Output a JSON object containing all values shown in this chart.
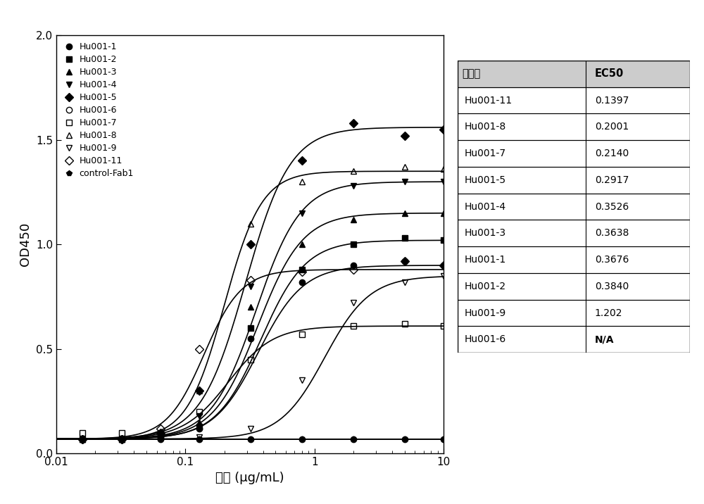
{
  "series": [
    {
      "name": "Hu001-1",
      "marker": "o",
      "fillstyle": "full",
      "color": "black",
      "ec50": 0.3676,
      "bottom": 0.07,
      "top": 0.9,
      "hill": 2.5,
      "x_data": [
        0.016,
        0.032,
        0.064,
        0.128,
        0.32,
        0.8,
        2.0,
        5.0,
        10.0
      ],
      "y_data": [
        0.07,
        0.07,
        0.08,
        0.12,
        0.55,
        0.82,
        0.9,
        0.92,
        0.9
      ]
    },
    {
      "name": "Hu001-2",
      "marker": "s",
      "fillstyle": "full",
      "color": "black",
      "ec50": 0.384,
      "bottom": 0.07,
      "top": 1.02,
      "hill": 2.5,
      "x_data": [
        0.016,
        0.032,
        0.064,
        0.128,
        0.32,
        0.8,
        2.0,
        5.0,
        10.0
      ],
      "y_data": [
        0.07,
        0.07,
        0.08,
        0.13,
        0.6,
        0.88,
        1.0,
        1.03,
        1.02
      ]
    },
    {
      "name": "Hu001-3",
      "marker": "^",
      "fillstyle": "full",
      "color": "black",
      "ec50": 0.3638,
      "bottom": 0.07,
      "top": 1.15,
      "hill": 2.5,
      "x_data": [
        0.016,
        0.032,
        0.064,
        0.128,
        0.32,
        0.8,
        2.0,
        5.0,
        10.0
      ],
      "y_data": [
        0.07,
        0.07,
        0.09,
        0.15,
        0.7,
        1.0,
        1.12,
        1.15,
        1.15
      ]
    },
    {
      "name": "Hu001-4",
      "marker": "v",
      "fillstyle": "full",
      "color": "black",
      "ec50": 0.3526,
      "bottom": 0.07,
      "top": 1.3,
      "hill": 2.5,
      "x_data": [
        0.016,
        0.032,
        0.064,
        0.128,
        0.32,
        0.8,
        2.0,
        5.0,
        10.0
      ],
      "y_data": [
        0.07,
        0.07,
        0.09,
        0.18,
        0.8,
        1.15,
        1.28,
        1.3,
        1.3
      ]
    },
    {
      "name": "Hu001-5",
      "marker": "D",
      "fillstyle": "full",
      "color": "black",
      "ec50": 0.2917,
      "bottom": 0.07,
      "top": 1.56,
      "hill": 2.5,
      "x_data": [
        0.016,
        0.032,
        0.064,
        0.128,
        0.32,
        0.8,
        2.0,
        5.0,
        10.0
      ],
      "y_data": [
        0.07,
        0.07,
        0.1,
        0.3,
        1.0,
        1.4,
        1.58,
        1.52,
        1.55
      ]
    },
    {
      "name": "Hu001-6",
      "marker": "o",
      "fillstyle": "none",
      "color": "black",
      "ec50": 9999,
      "bottom": 0.07,
      "top": 0.07,
      "hill": 1.0,
      "x_data": [
        0.016,
        0.032,
        0.064,
        0.128,
        0.32,
        0.8,
        2.0,
        5.0,
        10.0
      ],
      "y_data": [
        0.07,
        0.07,
        0.07,
        0.07,
        0.07,
        0.07,
        0.07,
        0.07,
        0.07
      ]
    },
    {
      "name": "Hu001-7",
      "marker": "s",
      "fillstyle": "none",
      "color": "black",
      "ec50": 0.214,
      "bottom": 0.07,
      "top": 0.61,
      "hill": 2.5,
      "x_data": [
        0.016,
        0.032,
        0.064,
        0.128,
        0.32,
        0.8,
        2.0,
        5.0,
        10.0
      ],
      "y_data": [
        0.1,
        0.1,
        0.1,
        0.2,
        0.45,
        0.57,
        0.61,
        0.62,
        0.61
      ]
    },
    {
      "name": "Hu001-8",
      "marker": "^",
      "fillstyle": "none",
      "color": "black",
      "ec50": 0.2001,
      "bottom": 0.07,
      "top": 1.35,
      "hill": 3.0,
      "x_data": [
        0.016,
        0.032,
        0.064,
        0.128,
        0.32,
        0.8,
        2.0,
        5.0,
        10.0
      ],
      "y_data": [
        0.07,
        0.07,
        0.09,
        0.3,
        1.1,
        1.3,
        1.35,
        1.37,
        1.36
      ]
    },
    {
      "name": "Hu001-9",
      "marker": "v",
      "fillstyle": "none",
      "color": "black",
      "ec50": 1.202,
      "bottom": 0.07,
      "top": 0.85,
      "hill": 2.5,
      "x_data": [
        0.016,
        0.032,
        0.064,
        0.128,
        0.32,
        0.8,
        2.0,
        5.0,
        10.0
      ],
      "y_data": [
        0.07,
        0.07,
        0.07,
        0.08,
        0.12,
        0.35,
        0.72,
        0.82,
        0.85
      ]
    },
    {
      "name": "Hu001-11",
      "marker": "D",
      "fillstyle": "none",
      "color": "black",
      "ec50": 0.1397,
      "bottom": 0.07,
      "top": 0.88,
      "hill": 3.0,
      "x_data": [
        0.016,
        0.032,
        0.064,
        0.128,
        0.32,
        0.8,
        2.0,
        5.0,
        10.0
      ],
      "y_data": [
        0.07,
        0.07,
        0.12,
        0.5,
        0.83,
        0.87,
        0.88,
        0.92,
        0.9
      ]
    },
    {
      "name": "control-Fab1",
      "marker": "p",
      "fillstyle": "full",
      "color": "black",
      "ec50": 9999,
      "bottom": 0.07,
      "top": 0.07,
      "hill": 1.0,
      "x_data": [
        0.016,
        0.032,
        0.064,
        0.128,
        0.32,
        0.8,
        2.0,
        5.0,
        10.0
      ],
      "y_data": [
        0.07,
        0.07,
        0.07,
        0.07,
        0.07,
        0.07,
        0.07,
        0.07,
        0.07
      ]
    }
  ],
  "table_data": {
    "col1_header": "克隆号",
    "col2_header": "EC50",
    "rows": [
      [
        "Hu001-11",
        "0.1397"
      ],
      [
        "Hu001-8",
        "0.2001"
      ],
      [
        "Hu001-7",
        "0.2140"
      ],
      [
        "Hu001-5",
        "0.2917"
      ],
      [
        "Hu001-4",
        "0.3526"
      ],
      [
        "Hu001-3",
        "0.3638"
      ],
      [
        "Hu001-1",
        "0.3676"
      ],
      [
        "Hu001-2",
        "0.3840"
      ],
      [
        "Hu001-9",
        "1.202"
      ],
      [
        "Hu001-6",
        "N/A"
      ]
    ]
  },
  "xlabel": "浓度 (μg/mL)",
  "ylabel": "OD450",
  "xlim": [
    0.01,
    10
  ],
  "ylim": [
    0.0,
    2.0
  ],
  "yticks": [
    0.0,
    0.5,
    1.0,
    1.5,
    2.0
  ],
  "xtick_labels": [
    "0.01",
    "0.1",
    "1",
    "10"
  ],
  "xtick_vals": [
    0.01,
    0.1,
    1.0,
    10.0
  ],
  "background_color": "#ffffff"
}
